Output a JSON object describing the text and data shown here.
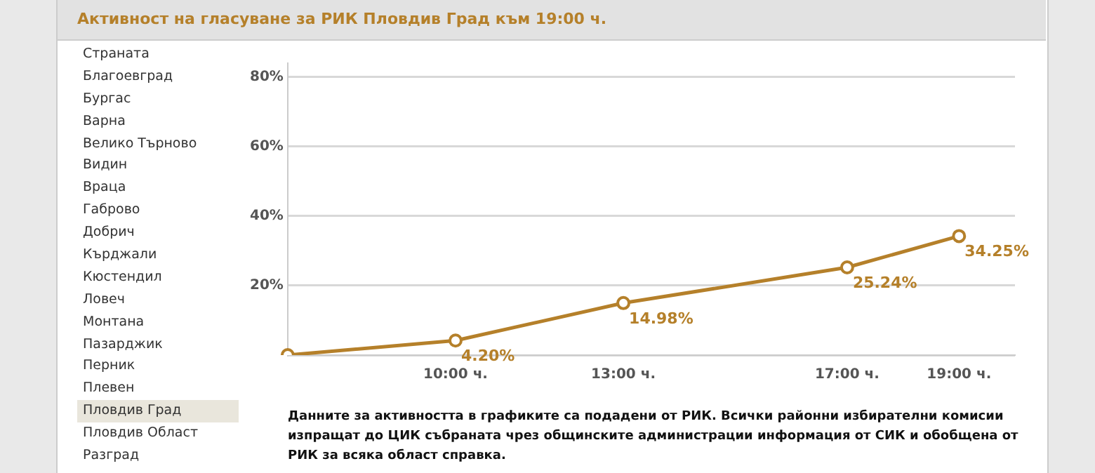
{
  "chart_data": {
    "type": "line",
    "title": "Активност на гласуване за РИК Пловдив Град към 19:00 ч.",
    "categories": [
      null,
      null,
      null,
      "10:00 ч.",
      null,
      null,
      "13:00 ч.",
      null,
      null,
      null,
      "17:00 ч.",
      null,
      "19:00 ч.",
      null
    ],
    "series": [
      {
        "color": "#b5802a",
        "values": [
          0,
          null,
          null,
          4.2,
          null,
          null,
          14.98,
          null,
          null,
          null,
          25.24,
          null,
          34.25,
          null
        ],
        "value_labels": [
          null,
          null,
          null,
          "4.20%",
          null,
          null,
          "14.98%",
          null,
          null,
          null,
          "25.24%",
          null,
          "34.25%",
          null
        ]
      }
    ],
    "ylim": [
      0,
      84
    ],
    "yticks": [
      {
        "value": 0,
        "label": null
      },
      {
        "value": 20,
        "label": "20%"
      },
      {
        "value": 40,
        "label": "40%"
      },
      {
        "value": 60,
        "label": "60%"
      },
      {
        "value": 80,
        "label": "80%"
      }
    ],
    "grid": "y",
    "legend": false,
    "marker": "circle",
    "line_style": "solid",
    "annotations": [
      "Страната",
      "Благоевград",
      "Бургас",
      "Варна",
      "Велико Търново",
      "Видин",
      "Враца",
      "Габрово",
      "Добрич",
      "Кърджали",
      "Кюстендил",
      "Ловеч",
      "Монтана",
      "Пазарджик",
      "Перник",
      "Плевен",
      "Пловдив Град",
      "Пловдив Област",
      "Разград",
      "Данните за активността в графиките са подадени от РИК. Всички районни избирателни комисии изпращат до ЦИК събраната чрез общинските администрации информация от СИК и обобщена от РИК за всяка област справка."
    ]
  }
}
